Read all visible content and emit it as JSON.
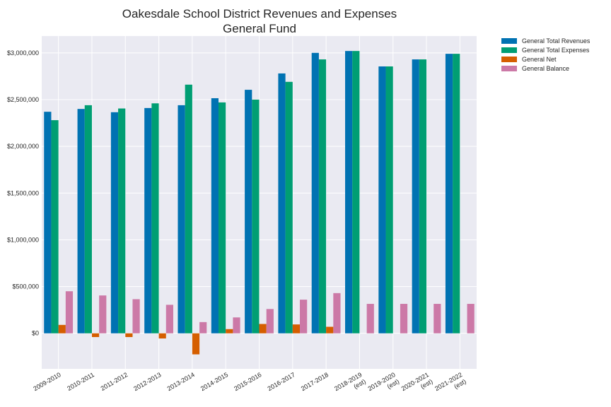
{
  "chart_data": {
    "type": "bar",
    "title": "Oakesdale School District Revenues and Expenses",
    "subtitle": "General Fund",
    "xlabel": "",
    "ylabel": "",
    "ylim": [
      -380000,
      3180000
    ],
    "y_ticks": [
      0,
      500000,
      1000000,
      1500000,
      2000000,
      2500000,
      3000000
    ],
    "y_tick_labels": [
      "$0",
      "$500,000",
      "$1,000,000",
      "$1,500,000",
      "$2,000,000",
      "$2,500,000",
      "$3,000,000"
    ],
    "grid": true,
    "legend_position": "outside-top-right",
    "categories": [
      [
        "2009-2010"
      ],
      [
        "2010-2011"
      ],
      [
        "2011-2012"
      ],
      [
        "2012-2013"
      ],
      [
        "2013-2014"
      ],
      [
        "2014-2015"
      ],
      [
        "2015-2016"
      ],
      [
        "2016-2017"
      ],
      [
        "2017-2018"
      ],
      [
        "2018-2019",
        "(est)"
      ],
      [
        "2019-2020",
        "(est)"
      ],
      [
        "2020-2021",
        "(est)"
      ],
      [
        "2021-2022",
        "(est)"
      ]
    ],
    "series": [
      {
        "name": "General Total Revenues",
        "color": "#0072b2",
        "values": [
          2370000,
          2400000,
          2365000,
          2410000,
          2440000,
          2515000,
          2605000,
          2780000,
          3000000,
          3020000,
          2855000,
          2930000,
          2990000
        ]
      },
      {
        "name": "General Total Expenses",
        "color": "#009e73",
        "values": [
          2280000,
          2440000,
          2405000,
          2460000,
          2660000,
          2470000,
          2500000,
          2690000,
          2930000,
          3020000,
          2855000,
          2930000,
          2990000
        ]
      },
      {
        "name": "General Net",
        "color": "#d55e00",
        "values": [
          90000,
          -40000,
          -40000,
          -55000,
          -225000,
          45000,
          100000,
          95000,
          70000,
          0,
          0,
          0,
          0
        ]
      },
      {
        "name": "General Balance",
        "color": "#cc79a7",
        "values": [
          450000,
          405000,
          365000,
          305000,
          120000,
          170000,
          260000,
          360000,
          430000,
          315000,
          315000,
          315000,
          315000
        ]
      }
    ]
  }
}
